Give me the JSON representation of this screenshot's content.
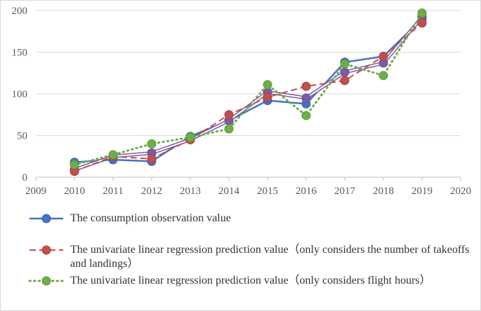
{
  "chart_data": {
    "type": "line",
    "x_axis": {
      "min": 2009,
      "max": 2020,
      "ticks": [
        "2009",
        "2010",
        "2011",
        "2012",
        "2013",
        "2014",
        "2015",
        "2016",
        "2017",
        "2018",
        "2019",
        "2020"
      ]
    },
    "y_axis": {
      "min": 0,
      "max": 200,
      "ticks": [
        "0",
        "50",
        "100",
        "150",
        "200"
      ]
    },
    "grid": "horizontal",
    "legend_position": "bottom",
    "series": [
      {
        "name": "The consumption observation value",
        "color": "#4472C4",
        "style": "solid",
        "x": [
          2010,
          2011,
          2012,
          2013,
          2014,
          2015,
          2016,
          2017,
          2018,
          2019
        ],
        "y": [
          18,
          21,
          19,
          49,
          68,
          92,
          88,
          138,
          145,
          190
        ]
      },
      {
        "name": "The univariate linear regression prediction value（only considers the number of takeoffs and landings）",
        "color": "#C0504D",
        "style": "dashed",
        "x": [
          2010,
          2011,
          2012,
          2013,
          2014,
          2015,
          2016,
          2017,
          2018,
          2019
        ],
        "y": [
          7,
          25,
          22,
          45,
          75,
          96,
          109,
          116,
          145,
          185
        ]
      },
      {
        "name": "The univariate linear regression prediction value（only considers flight hours）",
        "color": "#70AD47",
        "style": "dotted",
        "x": [
          2010,
          2011,
          2012,
          2013,
          2014,
          2015,
          2016,
          2017,
          2018,
          2019
        ],
        "y": [
          15,
          27,
          40,
          48,
          58,
          111,
          74,
          136,
          122,
          197
        ]
      },
      {
        "name": "",
        "color": "#7B5BA6",
        "style": "double",
        "x": [
          2010,
          2011,
          2012,
          2013,
          2014,
          2015,
          2016,
          2017,
          2018,
          2019
        ],
        "y": [
          9,
          25,
          29,
          45,
          68,
          102,
          95,
          126,
          137,
          192
        ]
      }
    ]
  }
}
